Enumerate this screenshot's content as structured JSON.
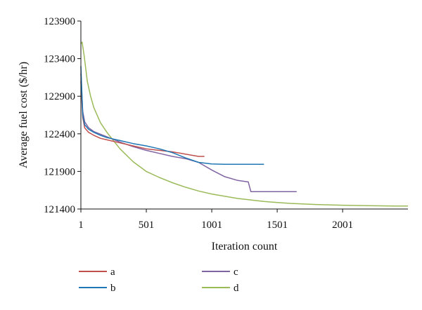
{
  "chart_data": {
    "type": "line",
    "xlabel": "Iteration count",
    "ylabel": "Average fuel cost ($/hr)",
    "xlim": [
      1,
      2500
    ],
    "ylim": [
      121400,
      123900
    ],
    "xticks": [
      1,
      501,
      1001,
      1501,
      2001
    ],
    "yticks": [
      121400,
      121900,
      122400,
      122900,
      123400,
      123900
    ],
    "grid": false,
    "legend_placement": "bottom",
    "series": [
      {
        "name": "a",
        "color": "#c0504d",
        "x": [
          1,
          15,
          30,
          60,
          100,
          150,
          200,
          300,
          400,
          500,
          600,
          700,
          800,
          900,
          945
        ],
        "y": [
          123100,
          122620,
          122480,
          122420,
          122380,
          122340,
          122320,
          122280,
          122240,
          122200,
          122180,
          122160,
          122130,
          122100,
          122100
        ]
      },
      {
        "name": "b",
        "color": "#1f77b4",
        "x": [
          1,
          15,
          30,
          60,
          100,
          150,
          200,
          300,
          400,
          500,
          600,
          700,
          800,
          900,
          1000,
          1100,
          1200,
          1300,
          1400
        ],
        "y": [
          123300,
          122650,
          122520,
          122460,
          122420,
          122380,
          122350,
          122310,
          122270,
          122240,
          122200,
          122150,
          122080,
          122020,
          122000,
          121995,
          121995,
          121995,
          121995
        ]
      },
      {
        "name": "c",
        "color": "#8064a2",
        "x": [
          1,
          15,
          30,
          60,
          100,
          200,
          300,
          400,
          500,
          600,
          700,
          800,
          900,
          1000,
          1100,
          1200,
          1280,
          1300,
          1400,
          1500,
          1650
        ],
        "y": [
          123200,
          122700,
          122560,
          122480,
          122430,
          122360,
          122290,
          122230,
          122180,
          122140,
          122100,
          122070,
          122020,
          121920,
          121830,
          121780,
          121760,
          121630,
          121630,
          121630,
          121630
        ]
      },
      {
        "name": "d",
        "color": "#9bbb59",
        "x": [
          1,
          10,
          25,
          50,
          75,
          100,
          150,
          200,
          300,
          400,
          500,
          600,
          700,
          800,
          900,
          1000,
          1200,
          1400,
          1600,
          1800,
          2000,
          2200,
          2400,
          2500
        ],
        "y": [
          123600,
          123620,
          123450,
          123100,
          122900,
          122750,
          122550,
          122420,
          122200,
          122030,
          121900,
          121820,
          121750,
          121690,
          121640,
          121600,
          121540,
          121500,
          121475,
          121460,
          121450,
          121445,
          121440,
          121440
        ]
      }
    ]
  }
}
